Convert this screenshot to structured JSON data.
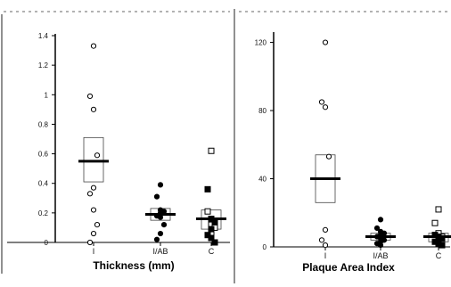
{
  "chart_data": [
    {
      "type": "scatter",
      "subtype": "dot-plot with mean bar and box",
      "title": "",
      "xlabel": "Thickness (mm)",
      "ylabel": "",
      "categories": [
        "I",
        "I/AB",
        "C"
      ],
      "ylim": [
        0,
        1.4
      ],
      "yticks": [
        "0",
        "0.2",
        "0.4",
        "0.6",
        "0.8",
        "1",
        "1.2",
        "1.4"
      ],
      "grid": false,
      "series": [
        {
          "category": "I",
          "marker": "open-circle",
          "values": [
            1.33,
            0.99,
            0.9,
            0.59,
            0.37,
            0.33,
            0.22,
            0.12,
            0.06,
            0.0
          ],
          "mean": 0.55,
          "box": [
            0.41,
            0.71
          ]
        },
        {
          "category": "I/AB",
          "marker": "filled-circle",
          "values": [
            0.39,
            0.31,
            0.22,
            0.21,
            0.2,
            0.18,
            0.17,
            0.12,
            0.06,
            0.02
          ],
          "mean": 0.19,
          "box": [
            0.15,
            0.23
          ]
        },
        {
          "category": "C",
          "marker": "square",
          "open_values": [
            0.62,
            0.21,
            0.12,
            0.1,
            0.06
          ],
          "filled_values": [
            0.36,
            0.16,
            0.14,
            0.09,
            0.05,
            0.03,
            0.0
          ],
          "mean": 0.16,
          "box": [
            0.09,
            0.22
          ]
        }
      ]
    },
    {
      "type": "scatter",
      "subtype": "dot-plot with mean bar and box",
      "title": "",
      "xlabel": "Plaque Area Index",
      "ylabel": "",
      "categories": [
        "I",
        "I/AB",
        "C"
      ],
      "ylim": [
        0,
        125
      ],
      "yticks": [
        "0",
        "40",
        "80",
        "120"
      ],
      "grid": false,
      "series": [
        {
          "category": "I",
          "marker": "open-circle",
          "values": [
            120,
            85,
            82,
            53,
            10,
            4,
            1
          ],
          "mean": 40,
          "box": [
            26,
            54
          ]
        },
        {
          "category": "I/AB",
          "marker": "filled-circle",
          "values": [
            16,
            11,
            9,
            8,
            7,
            6,
            5,
            4,
            3,
            2,
            1
          ],
          "mean": 6,
          "box": [
            4,
            8
          ]
        },
        {
          "category": "C",
          "marker": "square",
          "open_values": [
            22,
            14,
            8,
            6
          ],
          "filled_values": [
            7,
            6,
            5,
            4,
            3,
            2,
            1
          ],
          "mean": 6,
          "box": [
            3,
            8
          ]
        }
      ]
    }
  ]
}
